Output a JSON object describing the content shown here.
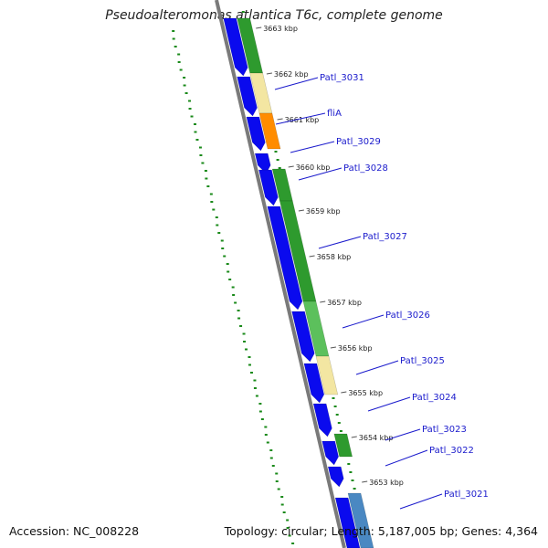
{
  "title": "Pseudoalteromonas atlantica T6c, complete genome",
  "footer": {
    "accession": "Accession: NC_008228",
    "summary": "Topology: circular; Length: 5,187,005 bp; Genes: 4,364"
  },
  "ticks": [
    "3663 kbp",
    "3662 kbp",
    "3661 kbp",
    "3660 kbp",
    "3659 kbp",
    "3658 kbp",
    "3657 kbp",
    "3656 kbp",
    "3655 kbp",
    "3654 kbp",
    "3653 kbp"
  ],
  "gene_labels": [
    "Patl_3031",
    "fliA",
    "Patl_3029",
    "Patl_3028",
    "Patl_3027",
    "Patl_3026",
    "Patl_3025",
    "Patl_3024",
    "Patl_3023",
    "Patl_3022",
    "Patl_3021"
  ],
  "colors": {
    "cds": "#0a0aee",
    "green": "#2e9a2e",
    "green_light": "#5cc05c",
    "pale_yellow": "#f3e6a2",
    "orange": "#ff8c00",
    "steel_blue": "#4a88c2",
    "backbone": "#7a7a7a",
    "dots": "#1a8a1a",
    "label": "#1a1acc",
    "tick_label": "#222222"
  }
}
